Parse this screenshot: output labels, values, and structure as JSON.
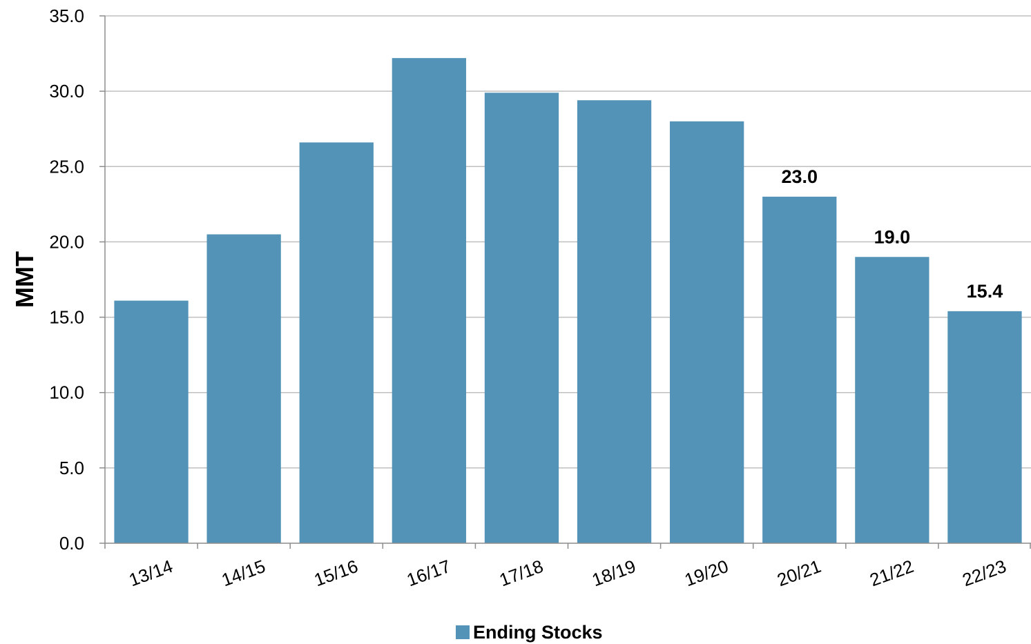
{
  "chart_data": {
    "type": "bar",
    "title": "",
    "xlabel": "",
    "ylabel": "MMT",
    "ylim": [
      0,
      35
    ],
    "yticks": [
      "0.0",
      "5.0",
      "10.0",
      "15.0",
      "20.0",
      "25.0",
      "30.0",
      "35.0"
    ],
    "grid": true,
    "legend_position": "bottom",
    "categories": [
      "13/14",
      "14/15",
      "15/16",
      "16/17",
      "17/18",
      "18/19",
      "19/20",
      "20/21",
      "21/22",
      "22/23"
    ],
    "series": [
      {
        "name": "Ending Stocks",
        "color": "#5393b7",
        "values": [
          16.1,
          20.5,
          26.6,
          32.2,
          29.9,
          29.4,
          28.0,
          23.0,
          19.0,
          15.4
        ],
        "data_labels": [
          "",
          "",
          "",
          "",
          "",
          "",
          "",
          "23.0",
          "19.0",
          "15.4"
        ]
      }
    ]
  }
}
